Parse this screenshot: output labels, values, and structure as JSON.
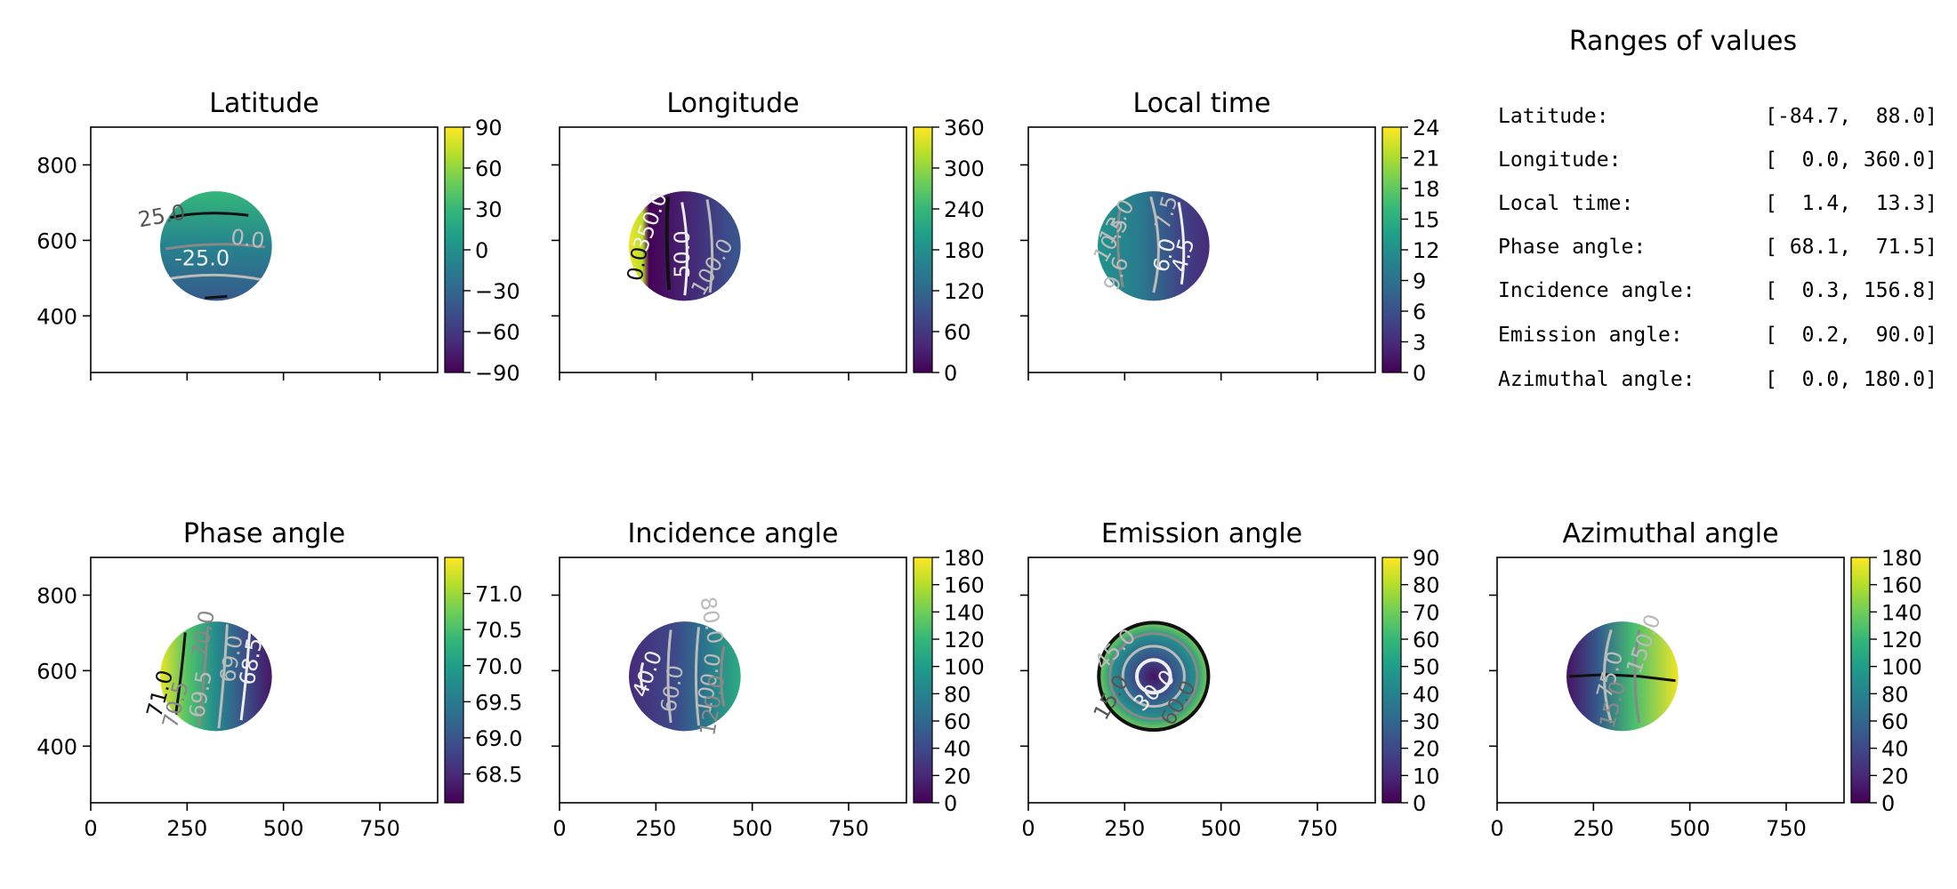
{
  "colors": {
    "viridis": [
      "#440154",
      "#482878",
      "#3e4989",
      "#31688e",
      "#26828e",
      "#1f9e89",
      "#35b779",
      "#6ece58",
      "#b5de2b",
      "#fde725"
    ],
    "frame": "#000000",
    "contour_black": "#111111",
    "contour_dark_gray": "#555555",
    "contour_gray": "#888888",
    "contour_light_gray": "#bbbbbb",
    "contour_white": "#eeeeee"
  },
  "chart_data": [
    {
      "type": "heatmap",
      "title": "Latitude",
      "xlim": [
        0,
        900
      ],
      "ylim": [
        250,
        900
      ],
      "xticks": [
        0,
        250,
        500,
        750
      ],
      "yticks": [
        400,
        600,
        800
      ],
      "ytick_labels": [
        "400",
        "600",
        "800"
      ],
      "show_x_labels": false,
      "show_y_labels": true,
      "disk": {
        "cx": 325,
        "cy": 585,
        "r": 145
      },
      "colorbar": {
        "min": -90,
        "max": 90,
        "ticks": [
          "90",
          "60",
          "30",
          "0",
          "−30",
          "−60",
          "−90"
        ]
      },
      "contour_labels": [
        "25.0",
        "0.0",
        "-25.0"
      ]
    },
    {
      "type": "heatmap",
      "title": "Longitude",
      "xlim": [
        0,
        900
      ],
      "ylim": [
        250,
        900
      ],
      "xticks": [
        0,
        250,
        500,
        750
      ],
      "yticks": [
        400,
        600,
        800
      ],
      "show_x_labels": false,
      "show_y_labels": false,
      "disk": {
        "cx": 325,
        "cy": 585,
        "r": 145
      },
      "colorbar": {
        "min": 0,
        "max": 360,
        "ticks": [
          "360",
          "300",
          "240",
          "180",
          "120",
          "60",
          "0"
        ]
      },
      "contour_labels": [
        "350.0",
        "0.0",
        "50.0",
        "100.0"
      ]
    },
    {
      "type": "heatmap",
      "title": "Local time",
      "xlim": [
        0,
        900
      ],
      "ylim": [
        250,
        900
      ],
      "xticks": [
        0,
        250,
        500,
        750
      ],
      "yticks": [
        400,
        600,
        800
      ],
      "show_x_labels": false,
      "show_y_labels": false,
      "disk": {
        "cx": 325,
        "cy": 585,
        "r": 145
      },
      "colorbar": {
        "min": 0,
        "max": 24,
        "ticks": [
          "24",
          "21",
          "18",
          "15",
          "12",
          "9",
          "6",
          "3",
          "0"
        ]
      },
      "contour_labels": [
        "13.0",
        "10.5",
        "7.5",
        "6.0",
        "4.5",
        "9.6"
      ]
    },
    {
      "type": "heatmap",
      "title": "Phase angle",
      "xlim": [
        0,
        900
      ],
      "ylim": [
        250,
        900
      ],
      "xticks": [
        0,
        250,
        500,
        750
      ],
      "xtick_labels": [
        "0",
        "250",
        "500",
        "750"
      ],
      "yticks": [
        400,
        600,
        800
      ],
      "ytick_labels": [
        "400",
        "600",
        "800"
      ],
      "show_x_labels": true,
      "show_y_labels": true,
      "disk": {
        "cx": 325,
        "cy": 585,
        "r": 145
      },
      "colorbar": {
        "min": 68.1,
        "max": 71.5,
        "tick_values": [
          68.5,
          69.0,
          69.5,
          70.0,
          70.5,
          71.0
        ],
        "ticks": [
          "68.5",
          "69.0",
          "69.5",
          "70.0",
          "70.5",
          "71.0"
        ]
      },
      "contour_labels": [
        "71.0",
        "70.5",
        "70.0",
        "69.5",
        "69.0",
        "68.5"
      ]
    },
    {
      "type": "heatmap",
      "title": "Incidence angle",
      "xlim": [
        0,
        900
      ],
      "ylim": [
        250,
        900
      ],
      "xticks": [
        0,
        250,
        500,
        750
      ],
      "xtick_labels": [
        "0",
        "250",
        "500",
        "750"
      ],
      "yticks": [
        400,
        600,
        800
      ],
      "show_x_labels": true,
      "show_y_labels": false,
      "disk": {
        "cx": 325,
        "cy": 585,
        "r": 145
      },
      "colorbar": {
        "min": 0,
        "max": 180,
        "ticks": [
          "180",
          "160",
          "140",
          "120",
          "100",
          "80",
          "60",
          "40",
          "20",
          "0"
        ]
      },
      "contour_labels": [
        "80.0",
        "40.0",
        "60.0",
        "100.0",
        "120.0"
      ]
    },
    {
      "type": "heatmap",
      "title": "Emission angle",
      "xlim": [
        0,
        900
      ],
      "ylim": [
        250,
        900
      ],
      "xticks": [
        0,
        250,
        500,
        750
      ],
      "xtick_labels": [
        "0",
        "250",
        "500",
        "750"
      ],
      "yticks": [
        400,
        600,
        800
      ],
      "show_x_labels": true,
      "show_y_labels": false,
      "disk": {
        "cx": 325,
        "cy": 585,
        "r": 145
      },
      "colorbar": {
        "min": 0,
        "max": 90,
        "ticks": [
          "90",
          "80",
          "70",
          "60",
          "50",
          "40",
          "30",
          "20",
          "10",
          "0"
        ]
      },
      "contour_labels": [
        "45.0",
        "30.0",
        "15.0",
        "60.0"
      ]
    },
    {
      "type": "heatmap",
      "title": "Azimuthal angle",
      "xlim": [
        0,
        900
      ],
      "ylim": [
        250,
        900
      ],
      "xticks": [
        0,
        250,
        500,
        750
      ],
      "xtick_labels": [
        "0",
        "250",
        "500",
        "750"
      ],
      "yticks": [
        400,
        600,
        800
      ],
      "show_x_labels": true,
      "show_y_labels": false,
      "disk": {
        "cx": 325,
        "cy": 585,
        "r": 145
      },
      "colorbar": {
        "min": 0,
        "max": 180,
        "ticks": [
          "180",
          "160",
          "140",
          "120",
          "100",
          "80",
          "60",
          "40",
          "20",
          "0"
        ]
      },
      "contour_labels": [
        "150.0",
        "75.0",
        "15.0"
      ]
    }
  ],
  "ranges": {
    "title": "Ranges of values",
    "rows": [
      {
        "label": "Latitude:",
        "value": "[-84.7,  88.0]"
      },
      {
        "label": "Longitude:",
        "value": "[  0.0, 360.0]"
      },
      {
        "label": "Local time:",
        "value": "[  1.4,  13.3]"
      },
      {
        "label": "Phase angle:",
        "value": "[ 68.1,  71.5]"
      },
      {
        "label": "Incidence angle:",
        "value": "[  0.3, 156.8]"
      },
      {
        "label": "Emission angle:",
        "value": "[  0.2,  90.0]"
      },
      {
        "label": "Azimuthal angle:",
        "value": "[  0.0, 180.0]"
      }
    ]
  }
}
